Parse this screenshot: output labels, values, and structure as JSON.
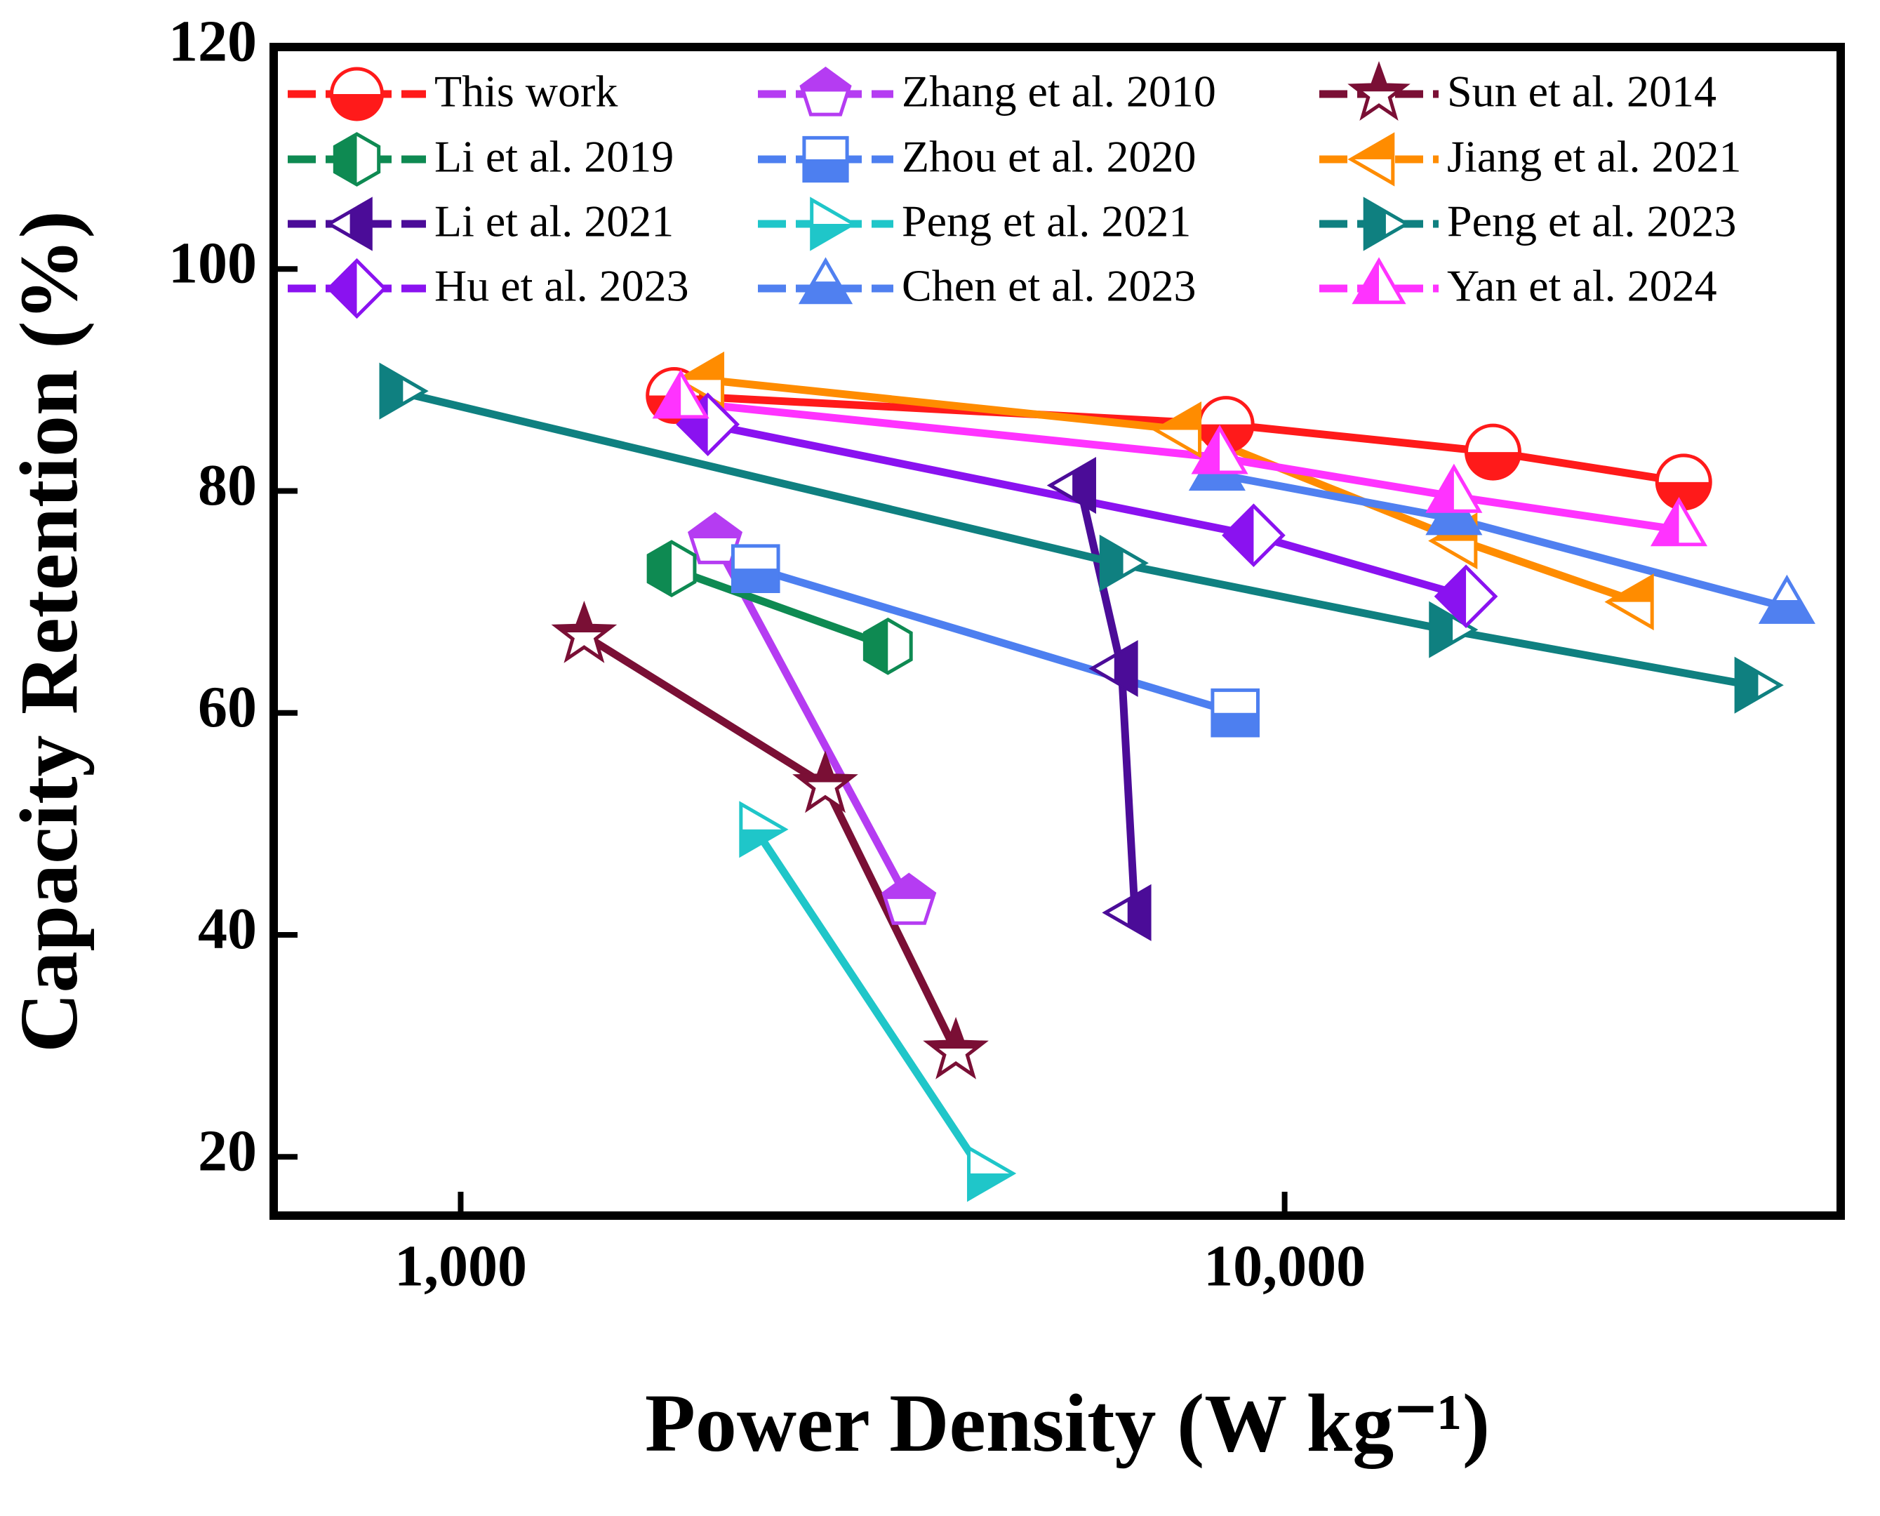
{
  "chart_data": {
    "type": "line",
    "xlabel": "Power Density (W kg⁻¹)",
    "ylabel": "Capacity Retention (%)",
    "xscale": "log",
    "xlim": [
      593,
      47300
    ],
    "ylim": [
      14.7,
      120
    ],
    "xticks": [
      {
        "value": 1000,
        "label": "1,000"
      },
      {
        "value": 10000,
        "label": "10,000"
      }
    ],
    "yticks": [
      20,
      40,
      60,
      80,
      100,
      120
    ],
    "legend": "top",
    "series": [
      {
        "name": "This work",
        "color": "#ff1a1a",
        "marker": "circle",
        "half": "bottom",
        "x": [
          1816,
          8490,
          17900,
          30500
        ],
        "values": [
          88.6,
          86,
          83.5,
          80.8
        ]
      },
      {
        "name": "Zhang et al. 2010",
        "color": "#b53cf2",
        "marker": "pentagon",
        "half": "top",
        "x": [
          2036,
          3500
        ],
        "values": [
          75.5,
          43
        ]
      },
      {
        "name": "Sun et al. 2014",
        "color": "#7a0f35",
        "marker": "star",
        "half": "top",
        "x": [
          1412,
          2770,
          3990
        ],
        "values": [
          67,
          53.5,
          29.5
        ]
      },
      {
        "name": "Li et al. 2019",
        "color": "#0e8a52",
        "marker": "hexagon",
        "half": "left",
        "x": [
          1803,
          3300
        ],
        "values": [
          73,
          66
        ]
      },
      {
        "name": "Zhou et al. 2020",
        "color": "#4d7ff0",
        "marker": "square",
        "half": "bottom",
        "x": [
          2280,
          8710
        ],
        "values": [
          73,
          60
        ]
      },
      {
        "name": "Jiang et al. 2021",
        "color": "#ff8c00",
        "marker": "triangle-left",
        "half": "top",
        "x": [
          1995,
          7570,
          16370,
          26800
        ],
        "values": [
          90,
          85.5,
          75.5,
          70
        ]
      },
      {
        "name": "Li et al. 2021",
        "color": "#4b0c98",
        "marker": "triangle-left",
        "half": "right",
        "x": [
          5640,
          6340,
          6580
        ],
        "values": [
          80.5,
          64,
          42
        ]
      },
      {
        "name": "Peng et al. 2021",
        "color": "#1fc6c9",
        "marker": "triangle-right",
        "half": "bottom",
        "x": [
          2280,
          4310
        ],
        "values": [
          49.5,
          18.5
        ]
      },
      {
        "name": "Peng et al. 2023",
        "color": "#0f8080",
        "marker": "triangle-right",
        "half": "left",
        "x": [
          834,
          6240,
          15670,
          36800
        ],
        "values": [
          89,
          73.5,
          67.5,
          62.5
        ]
      },
      {
        "name": "Hu et al. 2023",
        "color": "#8a12f0",
        "marker": "diamond",
        "half": "left",
        "x": [
          1995,
          9170,
          16600
        ],
        "values": [
          86,
          76,
          70.5
        ]
      },
      {
        "name": "Chen et al. 2023",
        "color": "#5080f0",
        "marker": "triangle-up",
        "half": "bottom",
        "x": [
          8280,
          16050,
          40700
        ],
        "values": [
          81.5,
          77.5,
          69.5
        ]
      },
      {
        "name": "Yan et al. 2024",
        "color": "#ff33ff",
        "marker": "triangle-up",
        "half": "left",
        "x": [
          1850,
          8340,
          16050,
          30100
        ],
        "values": [
          88,
          83,
          79.5,
          76.5
        ]
      }
    ]
  }
}
